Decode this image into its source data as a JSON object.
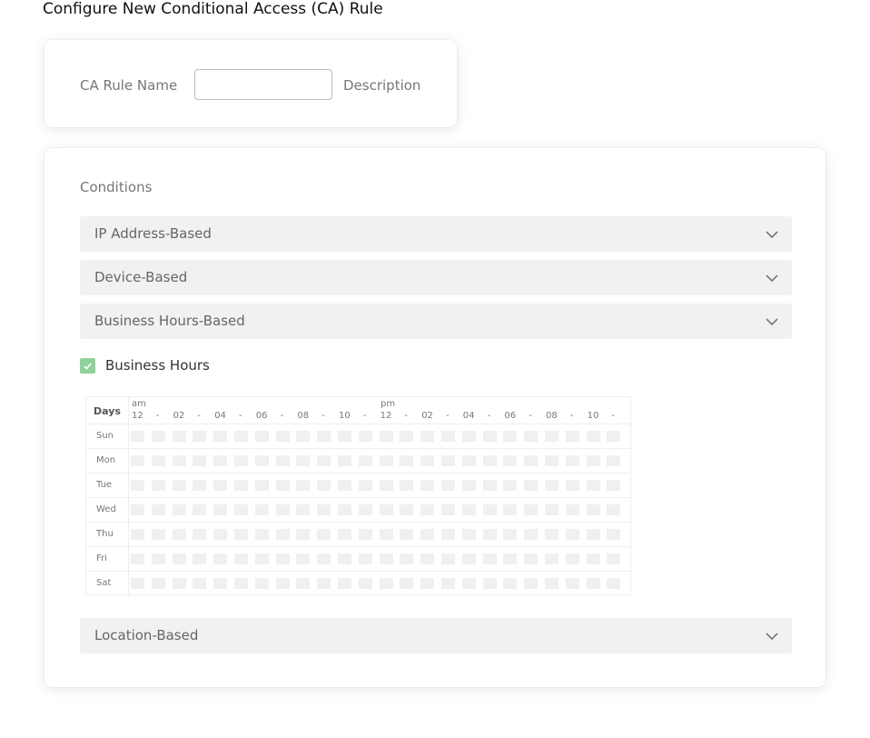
{
  "page_title": "Configure New Conditional Access (CA) Rule",
  "rule": {
    "name_label": "CA Rule Name",
    "name_value": "",
    "description_label": "Description"
  },
  "conditions": {
    "heading": "Conditions",
    "sections": [
      {
        "label": "IP Address-Based"
      },
      {
        "label": "Device-Based"
      },
      {
        "label": "Business Hours-Based"
      },
      {
        "label": "Location-Based"
      }
    ],
    "business_hours": {
      "checkbox_label": "Business Hours",
      "checked": true,
      "accent": "#8fd19a",
      "days_header": "Days",
      "am_label": "am",
      "pm_label": "pm",
      "hour_labels": [
        "12",
        "-",
        "02",
        "-",
        "04",
        "-",
        "06",
        "-",
        "08",
        "-",
        "10",
        "-",
        "12",
        "-",
        "02",
        "-",
        "04",
        "-",
        "06",
        "-",
        "08",
        "-",
        "10",
        "-"
      ],
      "days": [
        "Sun",
        "Mon",
        "Tue",
        "Wed",
        "Thu",
        "Fri",
        "Sat"
      ]
    }
  }
}
